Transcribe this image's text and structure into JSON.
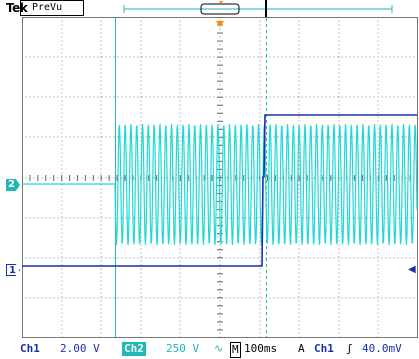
{
  "brand": "Tek",
  "mode": "PreVu",
  "channels": {
    "ch1": {
      "marker": "1",
      "label": "Ch1",
      "scale": "2.00 V",
      "color": "#1a2fb0"
    },
    "ch2": {
      "marker": "2",
      "label": "Ch2",
      "scale": "250 V",
      "coupling_symbol": "∿",
      "color": "#20b8b4"
    }
  },
  "timebase": {
    "label": "M",
    "value": "100ms"
  },
  "trigger": {
    "label": "A",
    "source": "Ch1",
    "slope_symbol": "ʃ",
    "level": "40.0mV",
    "level_marker_icon": "left-arrow"
  }
}
